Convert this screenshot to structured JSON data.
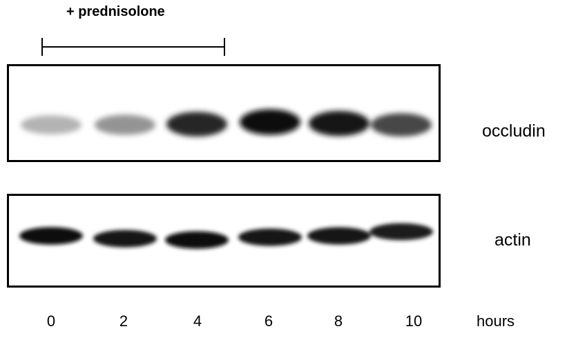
{
  "treatment": {
    "label": "+ prednisolone"
  },
  "blots": [
    {
      "label": "occludin",
      "band_intensity": [
        0.3,
        0.42,
        0.85,
        0.95,
        0.9,
        0.72
      ]
    },
    {
      "label": "actin",
      "band_intensity": [
        0.95,
        0.92,
        0.95,
        0.92,
        0.92,
        0.88
      ]
    }
  ],
  "lanes": [
    "0",
    "2",
    "4",
    "6",
    "8",
    "10"
  ],
  "time_unit": "hours"
}
